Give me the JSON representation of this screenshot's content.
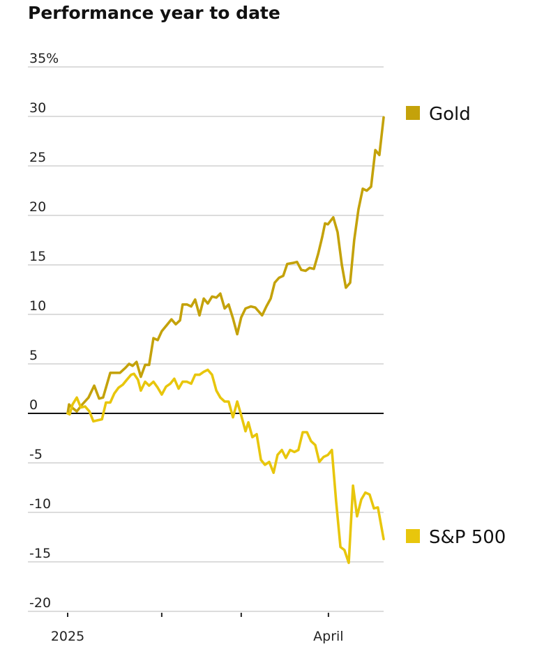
{
  "chart_data": {
    "type": "line",
    "title": "Performance year to date",
    "xlabel": "",
    "ylabel": "",
    "x_unit": "days since Jan 1, 2025",
    "xlim": [
      0,
      110.5
    ],
    "ylim": [
      -20,
      35
    ],
    "y_ticks": [
      {
        "value": 35,
        "label": "35%"
      },
      {
        "value": 30,
        "label": "30"
      },
      {
        "value": 25,
        "label": "25"
      },
      {
        "value": 20,
        "label": "20"
      },
      {
        "value": 15,
        "label": "15"
      },
      {
        "value": 10,
        "label": "10"
      },
      {
        "value": 5,
        "label": "5"
      },
      {
        "value": 0,
        "label": "0"
      },
      {
        "value": -5,
        "label": "-5"
      },
      {
        "value": -10,
        "label": "-10"
      },
      {
        "value": -15,
        "label": "-15"
      },
      {
        "value": -20,
        "label": "-20"
      }
    ],
    "x_ticks": [
      {
        "value": 0,
        "label": "2025"
      },
      {
        "value": 32.9,
        "label": ""
      },
      {
        "value": 60.7,
        "label": ""
      },
      {
        "value": 91.2,
        "label": "April"
      }
    ],
    "grid": true,
    "legend_placement": "right, at line ends",
    "series": [
      {
        "name": "Gold",
        "color": "#c4a20a",
        "x": [
          0,
          0.5,
          1.5,
          3.2,
          5.1,
          7.3,
          9.3,
          11.0,
          12.4,
          14.9,
          16.6,
          18.3,
          20.2,
          21.5,
          22.7,
          24.1,
          25.6,
          27.1,
          28.5,
          30.0,
          31.5,
          32.9,
          34.9,
          36.3,
          37.8,
          39.3,
          40.2,
          41.7,
          43.2,
          44.6,
          46.1,
          47.6,
          49.0,
          50.5,
          52.0,
          53.4,
          54.9,
          56.3,
          57.8,
          59.3,
          60.7,
          62.2,
          64.1,
          65.6,
          68.0,
          69.5,
          71.0,
          72.4,
          73.9,
          75.4,
          76.8,
          78.8,
          80.2,
          81.7,
          83.2,
          84.6,
          86.1,
          87.6,
          89.0,
          90.0,
          91.0,
          92.9,
          94.4,
          95.9,
          97.3,
          98.8,
          100.2,
          101.7,
          103.2,
          104.6,
          106.1,
          107.6,
          109.0,
          110.5
        ],
        "values": [
          0,
          0.9,
          0.6,
          0.2,
          0.9,
          1.6,
          2.8,
          1.5,
          1.6,
          4.1,
          4.1,
          4.1,
          4.6,
          5.0,
          4.8,
          5.2,
          3.7,
          4.9,
          4.9,
          7.6,
          7.4,
          8.3,
          9.0,
          9.5,
          9.0,
          9.4,
          11.0,
          11.0,
          10.8,
          11.5,
          9.9,
          11.6,
          11.1,
          11.8,
          11.7,
          12.1,
          10.6,
          11.0,
          9.6,
          8.0,
          9.7,
          10.6,
          10.8,
          10.7,
          9.9,
          10.8,
          11.6,
          13.2,
          13.7,
          13.9,
          15.1,
          15.2,
          15.3,
          14.5,
          14.4,
          14.7,
          14.6,
          16.1,
          17.8,
          19.2,
          19.1,
          19.8,
          18.3,
          15.0,
          12.7,
          13.2,
          17.5,
          20.6,
          22.7,
          22.5,
          22.9,
          26.6,
          26.1,
          29.9
        ]
      },
      {
        "name": "S&P 500",
        "color": "#e8c60c",
        "x": [
          0,
          0.7,
          1.7,
          3.2,
          4.6,
          6.1,
          7.6,
          9.0,
          10.5,
          12.0,
          13.4,
          14.9,
          16.3,
          17.8,
          19.3,
          20.7,
          22.2,
          23.2,
          24.6,
          25.6,
          27.1,
          28.5,
          30.0,
          31.5,
          32.9,
          34.4,
          35.9,
          37.3,
          38.8,
          40.2,
          41.7,
          43.2,
          44.6,
          46.1,
          47.6,
          49.0,
          50.5,
          52.0,
          53.4,
          54.9,
          56.3,
          57.8,
          59.3,
          60.7,
          62.2,
          63.2,
          64.6,
          66.1,
          67.6,
          69.0,
          70.5,
          72.0,
          73.4,
          74.9,
          76.3,
          77.8,
          79.3,
          80.7,
          82.2,
          83.7,
          85.1,
          86.6,
          88.0,
          89.5,
          91.0,
          92.4,
          93.9,
          95.4,
          96.8,
          98.3,
          99.8,
          101.2,
          102.7,
          104.1,
          105.6,
          107.1,
          108.5,
          110.5
        ],
        "values": [
          0,
          -0.1,
          0.9,
          1.6,
          0.6,
          0.7,
          0.2,
          -0.8,
          -0.7,
          -0.6,
          1.1,
          1.1,
          2.0,
          2.6,
          2.9,
          3.4,
          3.9,
          4.0,
          3.4,
          2.3,
          3.2,
          2.8,
          3.2,
          2.6,
          1.9,
          2.7,
          3.0,
          3.5,
          2.5,
          3.2,
          3.2,
          3.0,
          3.9,
          3.9,
          4.2,
          4.4,
          3.9,
          2.3,
          1.6,
          1.2,
          1.2,
          -0.4,
          1.2,
          -0.2,
          -1.8,
          -0.9,
          -2.4,
          -2.1,
          -4.7,
          -5.2,
          -4.9,
          -6.0,
          -4.2,
          -3.7,
          -4.5,
          -3.7,
          -3.9,
          -3.7,
          -1.9,
          -1.9,
          -2.8,
          -3.2,
          -4.9,
          -4.4,
          -4.2,
          -3.7,
          -8.9,
          -13.5,
          -13.8,
          -15.1,
          -7.3,
          -10.4,
          -8.7,
          -8.0,
          -8.2,
          -9.6,
          -9.5,
          -12.7
        ]
      }
    ]
  }
}
